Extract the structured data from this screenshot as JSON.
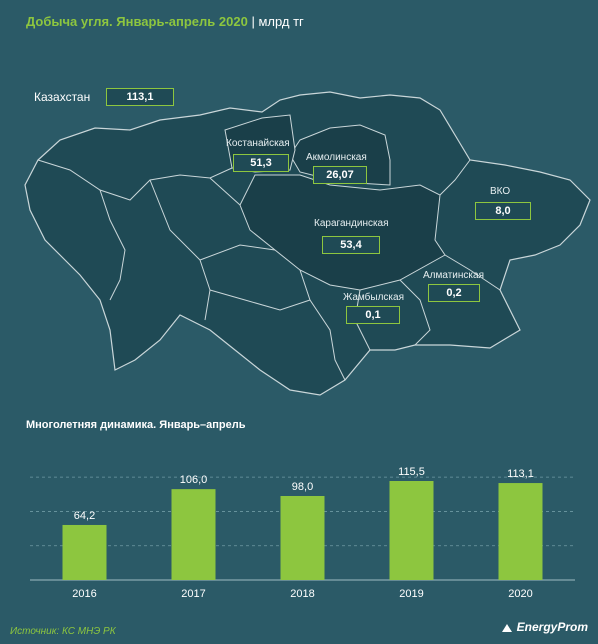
{
  "header": {
    "title_highlight": "Добыча угля. Январь-апрель 2020",
    "separator": "|",
    "unit": "млрд тг"
  },
  "map": {
    "country_label": "Казахстан",
    "country_value": "113,1",
    "regions": [
      {
        "name": "Костанайская",
        "value": "51,3"
      },
      {
        "name": "Акмолинская",
        "value": "26,07"
      },
      {
        "name": "ВКО",
        "value": "8,0"
      },
      {
        "name": "Карагандинская",
        "value": "53,4"
      },
      {
        "name": "Алматинская",
        "value": "0,2"
      },
      {
        "name": "Жамбылская",
        "value": "0,1"
      }
    ],
    "colors": {
      "land": "#1f4a55",
      "highlight": "#1a3f49",
      "border": "#c9d6d9",
      "accent": "#8dc63f"
    }
  },
  "chart_data": {
    "type": "bar",
    "title": "Многолетняя динамика. Январь–апрель",
    "categories": [
      "2016",
      "2017",
      "2018",
      "2019",
      "2020"
    ],
    "values": [
      64.2,
      106.0,
      98.0,
      115.5,
      113.1
    ],
    "value_labels": [
      "64,2",
      "106,0",
      "98,0",
      "115,5",
      "113,1"
    ],
    "ylim": [
      0,
      140
    ],
    "grid": true,
    "bar_color": "#8dc63f"
  },
  "footer": {
    "source": "Источник: КС МНЭ РК",
    "logo": "EnergyProm"
  }
}
